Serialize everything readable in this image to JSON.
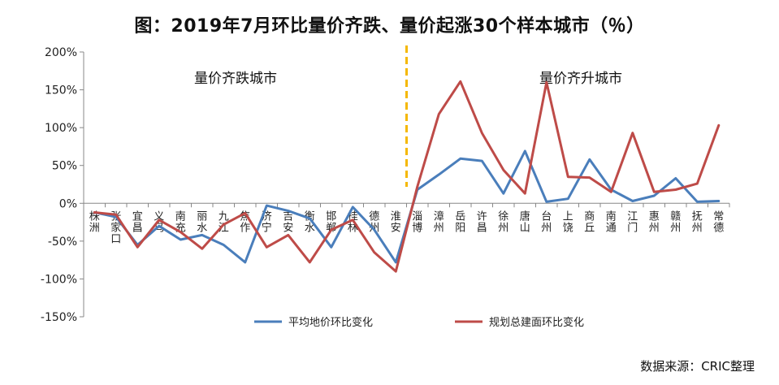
{
  "title": "图：2019年7月环比量价齐跌、量价起涨30个样本城市（％）",
  "source": "数据来源：CRIC整理",
  "chart_data": {
    "type": "line",
    "title": "图：2019年7月环比量价齐跌、量价起涨30个样本城市（％）",
    "categories": [
      "株洲",
      "张家口",
      "宜昌",
      "义乌",
      "南充",
      "丽水",
      "九江",
      "焦作",
      "济宁",
      "吉安",
      "衡水",
      "邯郸",
      "桂林",
      "德州",
      "淮安",
      "淄博",
      "漳州",
      "岳阳",
      "许昌",
      "徐州",
      "唐山",
      "台州",
      "上饶",
      "商丘",
      "南通",
      "江门",
      "惠州",
      "赣州",
      "抚州",
      "常德"
    ],
    "series": [
      {
        "name": "平均地价环比变化",
        "color": "#4a7ebb",
        "values": [
          -12,
          -18,
          -55,
          -30,
          -48,
          -42,
          -55,
          -78,
          -3,
          -10,
          -20,
          -58,
          -5,
          -35,
          -78,
          18,
          38,
          59,
          56,
          13,
          69,
          2,
          6,
          58,
          18,
          3,
          10,
          33,
          2,
          3
        ]
      },
      {
        "name": "规划总建面环比变化",
        "color": "#be4b48",
        "values": [
          -12,
          -15,
          -58,
          -22,
          -38,
          -60,
          -28,
          -13,
          -58,
          -42,
          -78,
          -35,
          -22,
          -65,
          -90,
          22,
          118,
          161,
          93,
          44,
          13,
          160,
          35,
          34,
          15,
          93,
          15,
          18,
          26,
          103
        ]
      }
    ],
    "ylim": [
      -150,
      200
    ],
    "yticks": [
      "200%",
      "150%",
      "100%",
      "50%",
      "0%",
      "-50%",
      "-100%",
      "-150%"
    ],
    "regions": [
      "量价齐跌城市",
      "量价齐升城市"
    ],
    "divider_after_index": 14,
    "divider_color": "#f5b800",
    "grid": false,
    "legend": "bottom"
  }
}
